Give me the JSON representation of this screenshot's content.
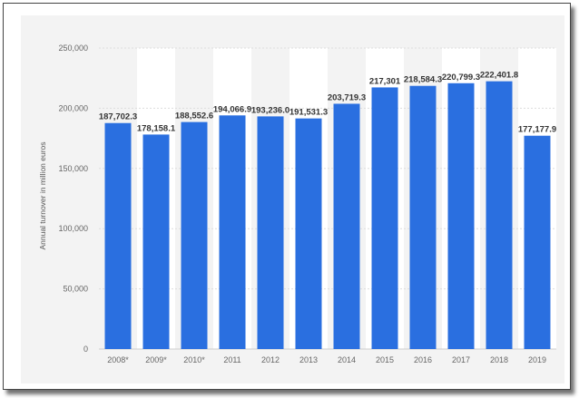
{
  "chart_data": {
    "type": "bar",
    "title": "",
    "xlabel": "",
    "ylabel": "Annual turnover in million euros",
    "categories": [
      "2008*",
      "2009*",
      "2010*",
      "2011",
      "2012",
      "2013",
      "2014",
      "2015",
      "2016",
      "2017",
      "2018",
      "2019"
    ],
    "values": [
      187702.3,
      178158.1,
      188552.6,
      194066.9,
      193236.0,
      191531.3,
      203719.3,
      217301,
      218584.3,
      220799.3,
      222401.8,
      177177.9
    ],
    "data_labels": [
      "187,702.3",
      "178,158.1",
      "188,552.6",
      "194,066.9",
      "193,236.0",
      "191,531.3",
      "203,719.3",
      "217,301",
      "218,584.3",
      "220,799.3",
      "222,401.8",
      "177,177.9"
    ],
    "ylim": [
      0,
      250000
    ],
    "yticks": [
      0,
      50000,
      100000,
      150000,
      200000,
      250000
    ],
    "ytick_labels": [
      "0",
      "50,000",
      "100,000",
      "150,000",
      "200,000",
      "250,000"
    ],
    "grid": true,
    "bar_color": "#2a6fe0",
    "legend": "none"
  }
}
